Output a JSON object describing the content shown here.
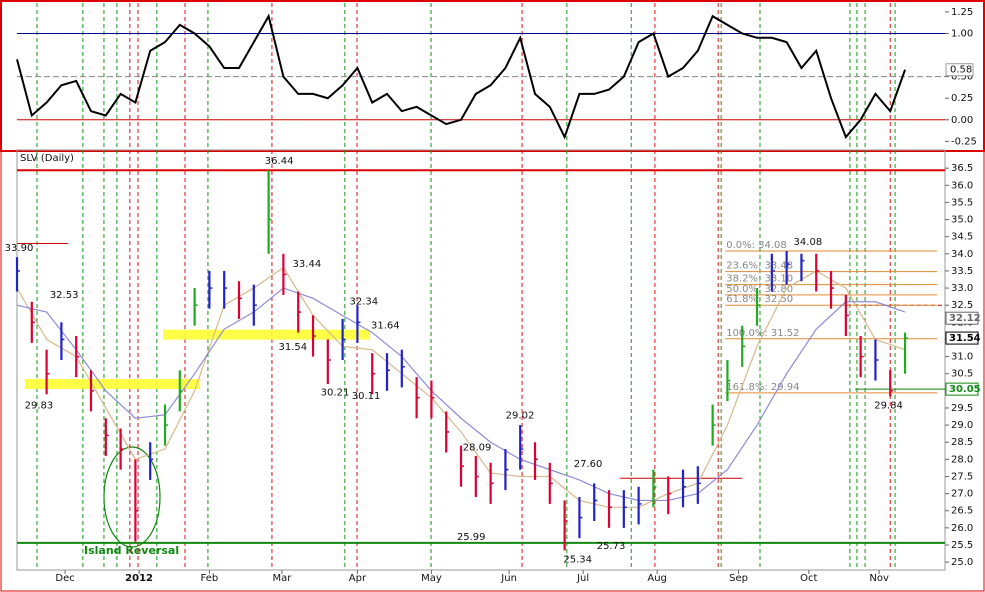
{
  "chart_data": [
    {
      "type": "line",
      "color": "#000000",
      "xlim": [
        0,
        250.8
      ],
      "ylim": [
        -0.35,
        1.33
      ],
      "x": [
        0,
        4,
        8,
        12,
        16,
        20,
        24,
        28,
        32,
        36,
        40,
        44,
        48,
        52,
        56,
        60,
        64,
        68,
        72,
        76,
        80,
        84,
        88,
        92,
        96,
        100,
        104,
        108,
        112,
        116,
        120,
        124,
        128,
        132,
        136,
        140,
        144,
        148,
        152,
        156,
        160,
        164,
        168,
        172,
        176,
        180,
        184,
        188,
        192,
        196,
        200,
        204,
        208,
        212,
        216,
        220,
        224,
        228,
        232,
        236,
        240
      ],
      "values": [
        0.7,
        0.05,
        0.2,
        0.4,
        0.45,
        0.1,
        0.05,
        0.3,
        0.2,
        0.8,
        0.9,
        1.1,
        1.0,
        0.85,
        0.6,
        0.6,
        0.9,
        1.2,
        0.5,
        0.3,
        0.3,
        0.25,
        0.4,
        0.6,
        0.2,
        0.3,
        0.1,
        0.15,
        0.05,
        -0.05,
        0.0,
        0.3,
        0.4,
        0.6,
        0.95,
        0.3,
        0.15,
        -0.2,
        0.3,
        0.3,
        0.35,
        0.5,
        0.9,
        1.0,
        0.5,
        0.6,
        0.8,
        1.2,
        1.1,
        1.0,
        0.95,
        0.95,
        0.9,
        0.6,
        0.8,
        0.25,
        -0.2,
        0.0,
        0.3,
        0.1,
        0.58
      ],
      "last_value_label": "0.58",
      "yticks": [
        {
          "value": -0.25,
          "label": "-0.25"
        },
        {
          "value": 0,
          "label": "0.00"
        },
        {
          "value": 0.25,
          "label": "0.25"
        },
        {
          "value": 0.5,
          "label": "0.50"
        },
        {
          "value": 1,
          "label": "1.00"
        },
        {
          "value": 1.25,
          "label": "1.25"
        }
      ],
      "hlines": [
        {
          "value": 1,
          "color": "#00008b"
        },
        {
          "value": 0,
          "color": "#cc0000"
        },
        {
          "value": 0.5,
          "color": "#888888",
          "dash": true
        }
      ]
    },
    {
      "type": "ohlc",
      "title": "SLV (Daily)",
      "xlim": [
        0,
        250.8
      ],
      "ylim": [
        24.77,
        37.03
      ],
      "x": [
        0,
        4,
        8,
        12,
        16,
        20,
        24,
        28,
        32,
        36,
        40,
        44,
        48,
        52,
        56,
        60,
        64,
        68,
        72,
        76,
        80,
        84,
        88,
        92,
        96,
        100,
        104,
        108,
        112,
        116,
        120,
        124,
        128,
        132,
        136,
        140,
        144,
        148,
        152,
        156,
        160,
        164,
        168,
        172,
        176,
        180,
        184,
        188,
        192,
        196,
        200,
        204,
        208,
        212,
        216,
        220,
        224,
        228,
        232,
        236,
        240
      ],
      "high": [
        33.9,
        32.6,
        31.2,
        32.0,
        31.6,
        30.6,
        29.2,
        28.9,
        28.0,
        28.5,
        29.6,
        30.6,
        33.0,
        33.5,
        33.5,
        33.2,
        33.1,
        36.44,
        34.0,
        32.9,
        32.2,
        31.5,
        32.1,
        32.5,
        31.1,
        31.1,
        31.2,
        30.4,
        30.3,
        29.4,
        28.4,
        28.1,
        27.9,
        28.3,
        29.0,
        28.5,
        27.9,
        26.8,
        26.9,
        27.3,
        27.1,
        27.1,
        27.2,
        27.7,
        27.5,
        27.7,
        27.8,
        29.6,
        30.9,
        31.9,
        33.0,
        34.0,
        34.08,
        34.0,
        34.0,
        33.5,
        32.8,
        31.6,
        31.5,
        30.6,
        31.7
      ],
      "low": [
        32.9,
        31.4,
        29.9,
        30.9,
        30.4,
        29.4,
        28.1,
        27.7,
        25.6,
        27.4,
        28.4,
        29.4,
        31.9,
        32.4,
        32.4,
        32.1,
        31.9,
        34.0,
        32.8,
        31.7,
        31.0,
        30.2,
        30.9,
        31.4,
        29.9,
        30.0,
        30.1,
        29.2,
        29.2,
        28.2,
        27.2,
        26.9,
        26.7,
        27.1,
        27.7,
        27.4,
        26.7,
        25.34,
        25.7,
        26.2,
        26.0,
        26.0,
        26.1,
        26.6,
        26.4,
        26.6,
        26.7,
        28.4,
        29.7,
        30.7,
        31.9,
        32.9,
        33.1,
        33.2,
        32.9,
        32.4,
        31.6,
        30.4,
        30.3,
        29.84,
        30.5
      ],
      "close": [
        33.5,
        32.0,
        30.5,
        31.5,
        31.0,
        30.0,
        28.7,
        28.3,
        26.5,
        28.0,
        29.0,
        30.0,
        32.5,
        33.0,
        33.0,
        32.7,
        32.5,
        35.0,
        33.4,
        32.3,
        31.6,
        30.9,
        31.5,
        32.0,
        30.5,
        30.6,
        30.7,
        29.8,
        29.8,
        28.8,
        27.8,
        27.5,
        27.3,
        27.7,
        28.3,
        28.0,
        27.3,
        26.2,
        26.3,
        26.8,
        26.6,
        26.6,
        26.7,
        27.2,
        27.0,
        27.2,
        27.3,
        29.0,
        30.3,
        31.3,
        32.5,
        33.5,
        33.7,
        33.8,
        33.5,
        33.0,
        32.2,
        31.0,
        30.9,
        30.0,
        31.54
      ],
      "bar_colors": [
        "#22c",
        "#d03",
        "#d03",
        "#22c",
        "#d03",
        "#d03",
        "#d03",
        "#d03",
        "#d03",
        "#22c",
        "#2a2",
        "#2a2",
        "#2a2",
        "#22c",
        "#22c",
        "#d03",
        "#22c",
        "#2a2",
        "#d03",
        "#d03",
        "#d03",
        "#d03",
        "#22c",
        "#22c",
        "#d03",
        "#22c",
        "#22c",
        "#d03",
        "#d03",
        "#d03",
        "#d03",
        "#d03",
        "#d03",
        "#22c",
        "#22c",
        "#d03",
        "#d03",
        "#d03",
        "#22c",
        "#22c",
        "#d03",
        "#22c",
        "#22c",
        "#2a2",
        "#d03",
        "#22c",
        "#22c",
        "#2a2",
        "#2a2",
        "#2a2",
        "#2a2",
        "#22c",
        "#22c",
        "#22c",
        "#d03",
        "#d03",
        "#d03",
        "#d03",
        "#22c",
        "#d03",
        "#2a2"
      ],
      "ma_x": [
        0,
        8,
        16,
        24,
        32,
        40,
        48,
        56,
        64,
        72,
        80,
        88,
        96,
        104,
        112,
        120,
        128,
        136,
        144,
        152,
        160,
        168,
        176,
        184,
        192,
        200,
        208,
        216,
        224,
        232,
        240
      ],
      "ma_fast": {
        "color": "#d8b98c",
        "values": [
          33.0,
          31.5,
          31.0,
          29.5,
          28.0,
          28.3,
          30.0,
          32.5,
          33.0,
          33.6,
          32.2,
          31.3,
          31.2,
          30.5,
          29.8,
          28.8,
          27.6,
          27.5,
          27.5,
          26.8,
          26.6,
          26.6,
          27.0,
          27.3,
          29.0,
          31.3,
          33.0,
          33.5,
          33.0,
          31.5,
          31.2
        ]
      },
      "ma_slow": {
        "color": "#8c8cd8",
        "values": [
          32.5,
          32.3,
          31.2,
          30.0,
          29.2,
          29.3,
          30.5,
          31.8,
          32.3,
          33.0,
          32.7,
          32.2,
          31.7,
          31.0,
          30.0,
          29.2,
          28.5,
          28.0,
          27.7,
          27.4,
          27.0,
          26.8,
          26.8,
          27.0,
          27.7,
          29.0,
          30.5,
          31.8,
          32.6,
          32.6,
          32.3
        ]
      },
      "xticks": [
        {
          "value": 13,
          "label": "Dec"
        },
        {
          "value": 33,
          "label": "2012"
        },
        {
          "value": 52,
          "label": "Feb"
        },
        {
          "value": 71.6,
          "label": "Mar"
        },
        {
          "value": 92,
          "label": "Apr"
        },
        {
          "value": 112,
          "label": "May"
        },
        {
          "value": 133,
          "label": "Jun"
        },
        {
          "value": 153,
          "label": "Jul"
        },
        {
          "value": 173,
          "label": "Aug"
        },
        {
          "value": 195,
          "label": "Sep"
        },
        {
          "value": 214,
          "label": "Oct"
        },
        {
          "value": 233,
          "label": "Nov"
        }
      ],
      "yticks": [
        {
          "value": 25,
          "label": "25.0"
        },
        {
          "value": 25.5,
          "label": "25.5"
        },
        {
          "value": 26,
          "label": "26.0"
        },
        {
          "value": 26.5,
          "label": "26.5"
        },
        {
          "value": 27,
          "label": "27.0"
        },
        {
          "value": 27.5,
          "label": "27.5"
        },
        {
          "value": 28,
          "label": "28.0"
        },
        {
          "value": 28.5,
          "label": "28.5"
        },
        {
          "value": 29,
          "label": "29.0"
        },
        {
          "value": 29.5,
          "label": "29.5"
        },
        {
          "value": 30,
          "label": "30.0"
        },
        {
          "value": 30.5,
          "label": "30.5"
        },
        {
          "value": 31,
          "label": "31.0"
        },
        {
          "value": 31.5,
          "label": "31.5"
        },
        {
          "value": 32,
          "label": "32.0"
        },
        {
          "value": 32.5,
          "label": "32.5"
        },
        {
          "value": 33,
          "label": "33.0"
        },
        {
          "value": 33.5,
          "label": "33.5"
        },
        {
          "value": 34,
          "label": "34.0"
        },
        {
          "value": 34.5,
          "label": "34.5"
        },
        {
          "value": 35,
          "label": "35.0"
        },
        {
          "value": 35.5,
          "label": "35.5"
        },
        {
          "value": 36,
          "label": "36.0"
        },
        {
          "value": 36.5,
          "label": "36.5"
        }
      ],
      "hlines": [
        {
          "value": 36.44,
          "color": "#dd0000",
          "x": [
            0,
            250.8
          ],
          "width": 2
        },
        {
          "value": 25.56,
          "color": "#118811",
          "x": [
            0,
            250.8
          ],
          "width": 2
        },
        {
          "value": 27.45,
          "color": "#cc0000",
          "x": [
            163,
            196
          ],
          "width": 1
        },
        {
          "value": 34.3,
          "color": "#cc0000",
          "x": [
            0,
            13.8
          ],
          "width": 1
        },
        {
          "value": 30.05,
          "color": "#118811",
          "x": [
            226.5,
            250.8
          ],
          "width": 1
        },
        {
          "value": 32.5,
          "color": "#cc0000",
          "x": [
            222.4,
            250.8
          ],
          "width": 1,
          "dash": true
        }
      ],
      "bands": [
        {
          "value": 30.2,
          "x": [
            2.2,
            49.5
          ]
        },
        {
          "value": 31.64,
          "x": [
            39.5,
            95.4
          ]
        }
      ],
      "fib_x": [
        191.4,
        248.7
      ],
      "fib_levels": [
        {
          "value": 34.08,
          "label": "0.0%: 34.08"
        },
        {
          "value": 33.48,
          "label": "23.6%: 33.48"
        },
        {
          "value": 33.1,
          "label": "38.2%: 33.10"
        },
        {
          "value": 32.8,
          "label": "50.0%: 32.80"
        },
        {
          "value": 32.5,
          "label": "61.8%: 32.50"
        },
        {
          "value": 31.52,
          "label": "100.0%: 31.52"
        },
        {
          "value": 29.94,
          "label": "161.8%: 29.94"
        }
      ],
      "right_labels": [
        {
          "value": 32.12,
          "label": "32.12",
          "color": "#666666"
        },
        {
          "value": 31.54,
          "label": "31.54",
          "color": "#000000"
        },
        {
          "value": 30.05,
          "label": "30.05",
          "color": "#118811"
        }
      ],
      "annotations": [
        {
          "label": "33.90",
          "x": 0,
          "y": 33.9,
          "above": true
        },
        {
          "label": "32.53",
          "x": 12.2,
          "y": 32.53,
          "above": true
        },
        {
          "label": "29.83",
          "x": 5.4,
          "y": 29.83,
          "above": false
        },
        {
          "label": "36.44",
          "x": 70.3,
          "y": 36.44,
          "above": true
        },
        {
          "label": "33.44",
          "x": 77.8,
          "y": 33.44,
          "above": true
        },
        {
          "label": "31.54",
          "x": 74,
          "y": 31.54,
          "above": false
        },
        {
          "label": "32.34",
          "x": 93.2,
          "y": 32.34,
          "above": true
        },
        {
          "label": "31.64",
          "x": 99,
          "y": 31.64,
          "above": true
        },
        {
          "label": "30.21",
          "x": 85.4,
          "y": 30.21,
          "above": false
        },
        {
          "label": "30.11",
          "x": 93.8,
          "y": 30.11,
          "above": false
        },
        {
          "label": "28.09",
          "x": 123.8,
          "y": 28.09,
          "above": true
        },
        {
          "label": "29.02",
          "x": 135.4,
          "y": 29.02,
          "above": true
        },
        {
          "label": "25.99",
          "x": 122.2,
          "y": 25.99,
          "above": false
        },
        {
          "label": "27.60",
          "x": 153.8,
          "y": 27.6,
          "above": true
        },
        {
          "label": "25.34",
          "x": 151,
          "y": 25.34,
          "above": false
        },
        {
          "label": "25.73",
          "x": 160,
          "y": 25.73,
          "above": false
        },
        {
          "label": "34.08",
          "x": 213.2,
          "y": 34.08,
          "above": true
        },
        {
          "label": "29.84",
          "x": 235,
          "y": 29.84,
          "above": false
        }
      ],
      "note": "Island Reversal",
      "signal_lines": [
        {
          "x": 5.4,
          "color": "#119911"
        },
        {
          "x": 17.8,
          "color": "#119911"
        },
        {
          "x": 23.5,
          "color": "#119911"
        },
        {
          "x": 27,
          "color": "#119911"
        },
        {
          "x": 37.8,
          "color": "#119911"
        },
        {
          "x": 51.6,
          "color": "#119911"
        },
        {
          "x": 88.6,
          "color": "#119911"
        },
        {
          "x": 111.9,
          "color": "#119911"
        },
        {
          "x": 148.6,
          "color": "#119911"
        },
        {
          "x": 166,
          "color": "#119911"
        },
        {
          "x": 190.3,
          "color": "#119911"
        },
        {
          "x": 200.8,
          "color": "#119911"
        },
        {
          "x": 225.1,
          "color": "#119911"
        },
        {
          "x": 227,
          "color": "#119911"
        },
        {
          "x": 229.2,
          "color": "#119911"
        },
        {
          "x": 237.3,
          "color": "#119911"
        },
        {
          "x": 30.5,
          "color": "#dd1111"
        },
        {
          "x": 32.7,
          "color": "#dd1111"
        },
        {
          "x": 45.4,
          "color": "#dd1111"
        },
        {
          "x": 68.9,
          "color": "#dd1111"
        },
        {
          "x": 91.9,
          "color": "#dd1111"
        },
        {
          "x": 136.5,
          "color": "#dd1111"
        },
        {
          "x": 172.4,
          "color": "#dd1111"
        },
        {
          "x": 189.5,
          "color": "#dd1111"
        },
        {
          "x": 236,
          "color": "#dd1111"
        }
      ]
    }
  ]
}
